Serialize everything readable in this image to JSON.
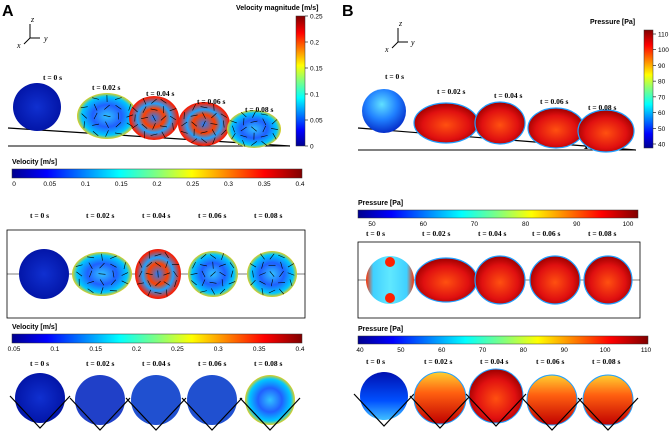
{
  "panels": {
    "A": {
      "letter": "A",
      "axes": {
        "z": "z",
        "x": "x",
        "y": "y"
      },
      "top": {
        "colorbar_title": "Velocity magnitude [m/s]",
        "ticks": [
          "0.25",
          "0.2",
          "0.15",
          "0.1",
          "0.05",
          "0"
        ],
        "times": [
          "t = 0 s",
          "t = 0.02 s",
          "t = 0.04 s",
          "t = 0.06 s",
          "t = 0.08 s"
        ],
        "angle": "10"
      },
      "middle": {
        "colorbar_title": "Velocity [m/s]",
        "ticks": [
          "0",
          "0.05",
          "0.1",
          "0.15",
          "0.2",
          "0.25",
          "0.3",
          "0.35",
          "0.4"
        ],
        "times": [
          "t = 0 s",
          "t = 0.02 s",
          "t = 0.04 s",
          "t = 0.06 s",
          "t = 0.08 s"
        ]
      },
      "bottom": {
        "colorbar_title": "Velocity [m/s]",
        "ticks": [
          "0.05",
          "0.1",
          "0.15",
          "0.2",
          "0.25",
          "0.3",
          "0.35",
          "0.4"
        ],
        "times": [
          "t = 0 s",
          "t = 0.02 s",
          "t = 0.04 s",
          "t = 0.06 s",
          "t = 0.08 s"
        ]
      }
    },
    "B": {
      "letter": "B",
      "axes": {
        "z": "z",
        "x": "x",
        "y": "y"
      },
      "top": {
        "colorbar_title": "Pressure [Pa]",
        "ticks": [
          "110",
          "100",
          "90",
          "80",
          "70",
          "60",
          "50",
          "40"
        ],
        "times": [
          "t = 0 s",
          "t = 0.02 s",
          "t = 0.04 s",
          "t = 0.06 s",
          "t = 0.08 s"
        ],
        "angle": "10"
      },
      "middle": {
        "colorbar_title": "Pressure [Pa]",
        "ticks": [
          "50",
          "60",
          "70",
          "80",
          "90",
          "100"
        ],
        "times": [
          "t = 0 s",
          "t = 0.02 s",
          "t = 0.04 s",
          "t = 0.06 s",
          "t = 0.08 s"
        ]
      },
      "bottom": {
        "colorbar_title": "Pressure [Pa]",
        "ticks": [
          "40",
          "50",
          "60",
          "70",
          "80",
          "90",
          "100",
          "110"
        ],
        "times": [
          "t = 0 s",
          "t = 0.02 s",
          "t = 0.04 s",
          "t = 0.06 s",
          "t = 0.08 s"
        ]
      }
    }
  },
  "colors": {
    "jet": [
      "#00008f",
      "#0000ff",
      "#0080ff",
      "#00ffff",
      "#80ff80",
      "#ffff00",
      "#ff8000",
      "#ff0000",
      "#800000"
    ]
  }
}
